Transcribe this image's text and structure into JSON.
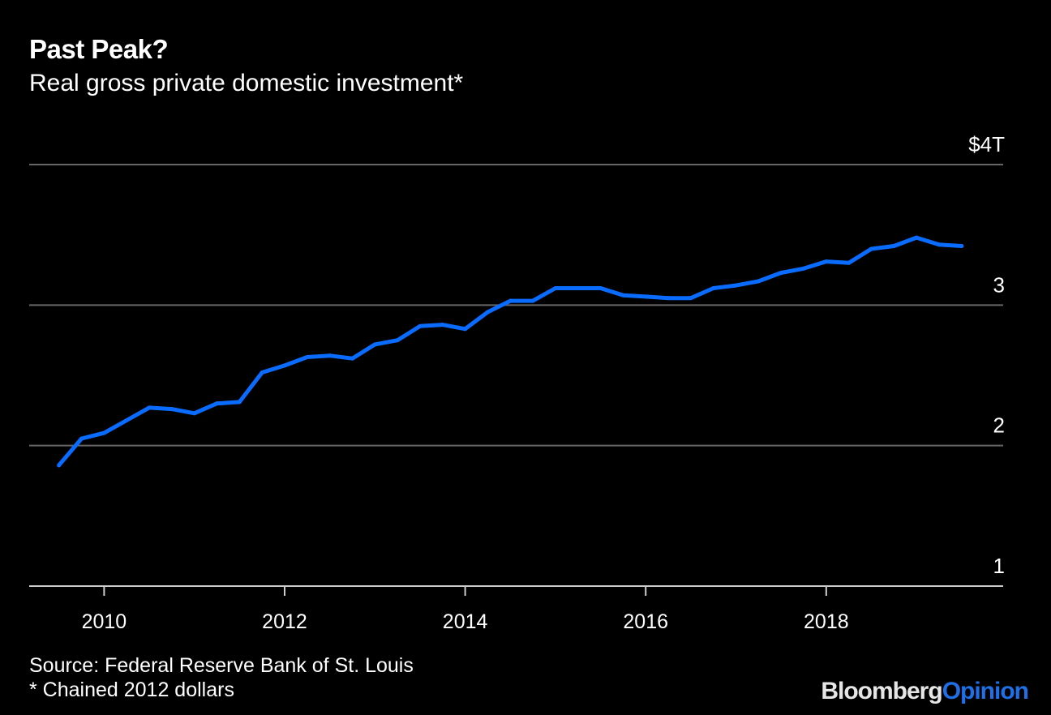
{
  "header": {
    "title": "Past Peak?",
    "subtitle": "Real gross private domestic investment*"
  },
  "footer": {
    "source": "Source: Federal Reserve Bank of St. Louis",
    "note": "* Chained 2012 dollars"
  },
  "brand": {
    "part1": "Bloomberg",
    "part2": "Opinion"
  },
  "colors": {
    "background": "#000000",
    "line": "#0a6cff",
    "grid": "#666666",
    "text": "#ffffff"
  },
  "chart_data": {
    "type": "line",
    "title": "Past Peak?",
    "subtitle": "Real gross private domestic investment*",
    "xlabel": "",
    "ylabel": "",
    "ylim": [
      1,
      4
    ],
    "xlim": [
      2009.17,
      2019.96
    ],
    "y_ticks": [
      {
        "value": 4,
        "label": "$4T"
      },
      {
        "value": 3,
        "label": "3"
      },
      {
        "value": 2,
        "label": "2"
      },
      {
        "value": 1,
        "label": "1"
      }
    ],
    "x_ticks": [
      {
        "value": 2010,
        "label": "2010"
      },
      {
        "value": 2012,
        "label": "2012"
      },
      {
        "value": 2014,
        "label": "2014"
      },
      {
        "value": 2016,
        "label": "2016"
      },
      {
        "value": 2018,
        "label": "2018"
      }
    ],
    "grid": true,
    "series": [
      {
        "x": [
          2009.5,
          2009.75,
          2010.0,
          2010.25,
          2010.5,
          2010.75,
          2011.0,
          2011.25,
          2011.5,
          2011.75,
          2012.0,
          2012.25,
          2012.5,
          2012.75,
          2013.0,
          2013.25,
          2013.5,
          2013.75,
          2014.0,
          2014.25,
          2014.5,
          2014.75,
          2015.0,
          2015.25,
          2015.5,
          2015.75,
          2016.0,
          2016.25,
          2016.5,
          2016.75,
          2017.0,
          2017.25,
          2017.5,
          2017.75,
          2018.0,
          2018.25,
          2018.5,
          2018.75,
          2019.0,
          2019.25,
          2019.5
        ],
        "values": [
          1.86,
          2.05,
          2.09,
          2.18,
          2.27,
          2.26,
          2.23,
          2.3,
          2.31,
          2.52,
          2.57,
          2.63,
          2.64,
          2.62,
          2.72,
          2.75,
          2.85,
          2.86,
          2.83,
          2.95,
          3.03,
          3.03,
          3.12,
          3.12,
          3.12,
          3.07,
          3.06,
          3.05,
          3.05,
          3.12,
          3.14,
          3.17,
          3.23,
          3.26,
          3.31,
          3.3,
          3.4,
          3.42,
          3.48,
          3.43,
          3.42
        ]
      }
    ]
  }
}
